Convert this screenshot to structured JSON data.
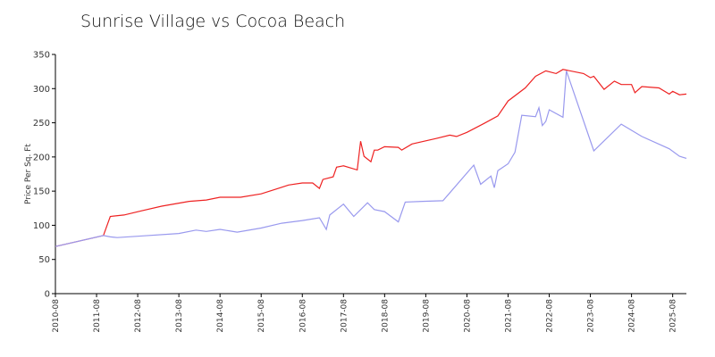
{
  "chart_data": {
    "type": "line",
    "title": "Sunrise Village vs Cocoa Beach",
    "y_label": "Price Per Sq. Ft",
    "xlim": [
      "2010-08",
      "2025-12"
    ],
    "xticks": [
      "2010-08",
      "2011-08",
      "2012-08",
      "2013-08",
      "2014-08",
      "2015-08",
      "2016-08",
      "2017-08",
      "2018-08",
      "2019-08",
      "2020-08",
      "2021-08",
      "2022-08",
      "2023-08",
      "2024-08",
      "2025-08"
    ],
    "ylim": [
      0,
      350
    ],
    "yticks": [
      0,
      50,
      100,
      150,
      200,
      250,
      300,
      350
    ],
    "grid": false,
    "series": [
      {
        "color": "#ee2222",
        "x": [
          "2010-08",
          "2011-10",
          "2011-12",
          "2012-04",
          "2012-09",
          "2013-03",
          "2013-11",
          "2014-04",
          "2014-08",
          "2015-02",
          "2015-08",
          "2016-01",
          "2016-04",
          "2016-08",
          "2016-11",
          "2017-01",
          "2017-02",
          "2017-05",
          "2017-06",
          "2017-08",
          "2017-12",
          "2018-01",
          "2018-02",
          "2018-04",
          "2018-05",
          "2018-06",
          "2018-08",
          "2018-12",
          "2019-01",
          "2019-04",
          "2019-11",
          "2020-03",
          "2020-05",
          "2020-08",
          "2021-01",
          "2021-05",
          "2021-08",
          "2022-01",
          "2022-04",
          "2022-07",
          "2022-10",
          "2022-12",
          "2023-06",
          "2023-08",
          "2023-09",
          "2023-12",
          "2024-03",
          "2024-05",
          "2024-08",
          "2024-09",
          "2024-11",
          "2025-04",
          "2025-07",
          "2025-08",
          "2025-10",
          "2025-12"
        ],
        "values": [
          69,
          85,
          113,
          115,
          121,
          128,
          135,
          137,
          141,
          141,
          146,
          154,
          159,
          162,
          162,
          154,
          167,
          171,
          185,
          187,
          181,
          223,
          201,
          193,
          210,
          210,
          215,
          214,
          210,
          219,
          227,
          232,
          230,
          236,
          249,
          260,
          282,
          301,
          318,
          326,
          322,
          328,
          322,
          316,
          318,
          299,
          311,
          306,
          306,
          294,
          303,
          301,
          292,
          296,
          291,
          292
        ]
      },
      {
        "color": "#9999ee",
        "x": [
          "2010-08",
          "2011-10",
          "2011-12",
          "2012-02",
          "2012-08",
          "2013-08",
          "2014-01",
          "2014-04",
          "2014-08",
          "2015-01",
          "2015-08",
          "2016-02",
          "2016-08",
          "2017-01",
          "2017-03",
          "2017-04",
          "2017-08",
          "2017-11",
          "2018-03",
          "2018-05",
          "2018-08",
          "2018-12",
          "2019-02",
          "2019-07",
          "2020-01",
          "2020-10",
          "2020-12",
          "2021-03",
          "2021-04",
          "2021-05",
          "2021-08",
          "2021-10",
          "2021-12",
          "2022-04",
          "2022-05",
          "2022-06",
          "2022-07",
          "2022-08",
          "2022-12",
          "2023-01",
          "2023-09",
          "2024-05",
          "2024-11",
          "2025-07",
          "2025-10",
          "2025-12"
        ],
        "values": [
          69,
          85,
          83,
          82,
          84,
          88,
          93,
          91,
          94,
          90,
          96,
          103,
          107,
          111,
          94,
          115,
          131,
          113,
          133,
          123,
          120,
          105,
          134,
          135,
          136,
          188,
          160,
          172,
          155,
          180,
          190,
          207,
          261,
          259,
          272,
          246,
          252,
          269,
          258,
          326,
          209,
          248,
          230,
          212,
          201,
          198
        ]
      }
    ]
  }
}
